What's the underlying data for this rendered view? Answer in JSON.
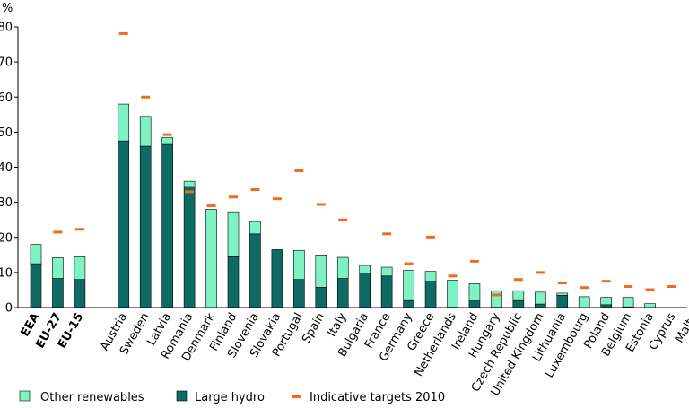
{
  "chart_data": {
    "type": "bar",
    "stacked": true,
    "ylabel": "%",
    "ylim": [
      0,
      80
    ],
    "yticks": [
      0,
      10,
      20,
      30,
      40,
      50,
      60,
      70,
      80
    ],
    "grid": false,
    "legend_position": "bottom",
    "bold_categories": [
      "EEA",
      "EU-27",
      "EU-15"
    ],
    "gap_after": "EU-15",
    "categories": [
      "EEA",
      "EU-27",
      "EU-15",
      "Austria",
      "Sweden",
      "Latvia",
      "Romania",
      "Denmark",
      "Finland",
      "Slovenia",
      "Slovakia",
      "Portugal",
      "Spain",
      "Italy",
      "Bulgaria",
      "France",
      "Germany",
      "Greece",
      "Netherlands",
      "Ireland",
      "Hungary",
      "Czech Republic",
      "United Kingdom",
      "Lithuania",
      "Luxembourg",
      "Poland",
      "Belgium",
      "Estonia",
      "Cyprus",
      "Malta"
    ],
    "series": [
      {
        "name": "Large hydro",
        "type": "bar",
        "color": "#0e6b63",
        "values": [
          12.5,
          8.3,
          8.0,
          47.5,
          46.0,
          46.5,
          34.5,
          0,
          14.5,
          21.0,
          16.5,
          8.0,
          5.8,
          8.3,
          9.8,
          9.0,
          2.0,
          7.5,
          0.1,
          1.9,
          0.1,
          2.0,
          1.0,
          3.5,
          0,
          0.8,
          0.2,
          0,
          0,
          0
        ]
      },
      {
        "name": "Other renewables",
        "type": "bar",
        "color": "#7ef2c4",
        "values": [
          5.5,
          5.9,
          6.5,
          10.5,
          8.5,
          2.0,
          1.5,
          28.0,
          12.8,
          3.5,
          0,
          8.3,
          9.2,
          6.0,
          2.2,
          2.5,
          8.6,
          2.8,
          7.7,
          4.9,
          4.6,
          2.8,
          3.4,
          0.6,
          3.1,
          2.1,
          2.7,
          1.1,
          0,
          0
        ]
      },
      {
        "name": "Indicative targets 2010",
        "type": "marker",
        "color": "#f26b1d",
        "values": [
          null,
          21.5,
          22.3,
          78.1,
          60.0,
          49.3,
          33.0,
          29.0,
          31.5,
          33.6,
          31.0,
          39.0,
          29.4,
          25.0,
          null,
          21.0,
          12.5,
          20.1,
          9.0,
          13.2,
          3.6,
          8.0,
          10.0,
          7.0,
          5.7,
          7.5,
          6.0,
          5.1,
          6.0,
          5.0
        ]
      }
    ],
    "legend": [
      "Other renewables",
      "Large hydro",
      "Indicative targets 2010"
    ]
  }
}
